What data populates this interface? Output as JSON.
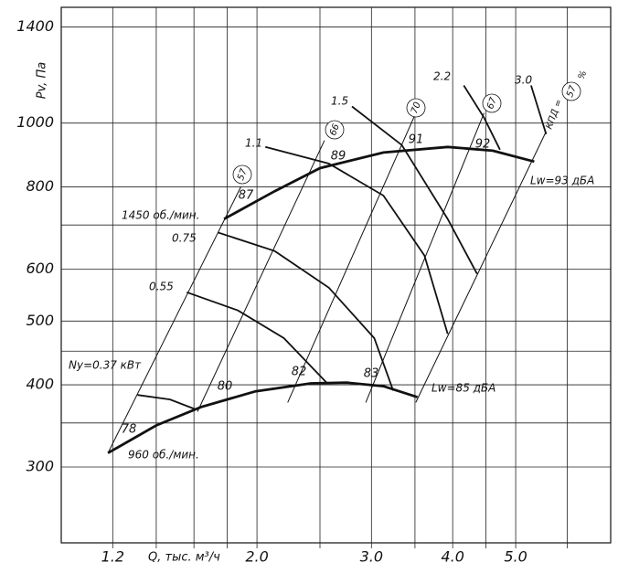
{
  "chart_data": {
    "type": "line",
    "xscale": "log",
    "yscale": "log",
    "x_label": "Q, тыс. м³/ч",
    "y_label": "Pv, Па",
    "xlim": [
      1,
      7
    ],
    "ylim": [
      230,
      1500
    ],
    "xticks": [
      1.2,
      {
        "value": 2,
        "label": "2.0"
      },
      {
        "value": 3,
        "label": "3.0"
      },
      {
        "value": 4,
        "label": "4.0"
      },
      {
        "value": 5,
        "label": "5.0"
      }
    ],
    "yticks": [
      300,
      400,
      500,
      600,
      800,
      1000,
      1400
    ],
    "xminor": [
      1.4,
      1.6,
      1.8,
      2.5,
      3.5,
      4.5,
      6
    ],
    "yminor": [
      350,
      450,
      700
    ],
    "grid": true,
    "color": "#111",
    "series": [
      {
        "name": "1450 об./мин.",
        "kind": "speed",
        "x": [
          1.78,
          2.13,
          2.5,
          3.13,
          3.93,
          4.61,
          5.34
        ],
        "values": [
          715,
          788,
          854,
          902,
          920,
          908,
          874
        ]
      },
      {
        "name": "960 об./мин.",
        "kind": "speed",
        "x": [
          1.18,
          1.4,
          1.64,
          1.99,
          2.42,
          2.75,
          3.13,
          3.53
        ],
        "values": [
          315,
          347,
          370,
          391,
          402,
          403,
          398,
          383
        ]
      },
      {
        "name": "Ny=0.37 кВт",
        "kind": "power",
        "x": [
          1.31,
          1.47,
          1.61
        ],
        "values": [
          386,
          380,
          367
        ]
      },
      {
        "name": "0.55",
        "kind": "power",
        "x": [
          1.56,
          1.87,
          2.2,
          2.56
        ],
        "values": [
          553,
          519,
          471,
          403
        ]
      },
      {
        "name": "0.75",
        "kind": "power",
        "x": [
          1.74,
          2.13,
          2.58,
          3.03,
          3.24
        ],
        "values": [
          682,
          639,
          562,
          471,
          392
        ]
      },
      {
        "name": "1.1",
        "kind": "power",
        "x": [
          2.06,
          2.58,
          3.13,
          3.62,
          3.93
        ],
        "values": [
          920,
          868,
          776,
          629,
          478
        ]
      },
      {
        "name": "1.5",
        "kind": "power",
        "x": [
          2.8,
          3.34,
          3.93,
          4.36
        ],
        "values": [
          1060,
          926,
          715,
          590
        ]
      },
      {
        "name": "2.2",
        "kind": "power",
        "x": [
          4.16,
          4.47,
          4.73
        ],
        "values": [
          1141,
          1019,
          911
        ]
      },
      {
        "name": "3.0",
        "kind": "power",
        "x": [
          5.28,
          5.57
        ],
        "values": [
          1141,
          962
        ]
      },
      {
        "name": "57",
        "kind": "efficiency",
        "x": [
          1.18,
          1.89
        ],
        "values": [
          315,
          801
        ]
      },
      {
        "name": "66",
        "kind": "efficiency",
        "x": [
          1.62,
          2.54
        ],
        "values": [
          364,
          941
        ]
      },
      {
        "name": "70",
        "kind": "efficiency",
        "x": [
          2.23,
          3.51
        ],
        "values": [
          376,
          1036
        ]
      },
      {
        "name": "67",
        "kind": "efficiency",
        "x": [
          2.94,
          4.47
        ],
        "values": [
          376,
          1036
        ]
      },
      {
        "name": "57",
        "kind": "efficiency",
        "x": [
          3.51,
          5.57
        ],
        "values": [
          376,
          971
        ]
      }
    ],
    "efficiency_prefix": "КПД =",
    "efficiency_unit": "%",
    "noise_labels": [
      "78",
      "80",
      "82",
      "83",
      "87",
      "89",
      "91",
      "92"
    ],
    "lw_labels": [
      "Lw=93 дБА",
      "Lw=85 дБА"
    ]
  }
}
